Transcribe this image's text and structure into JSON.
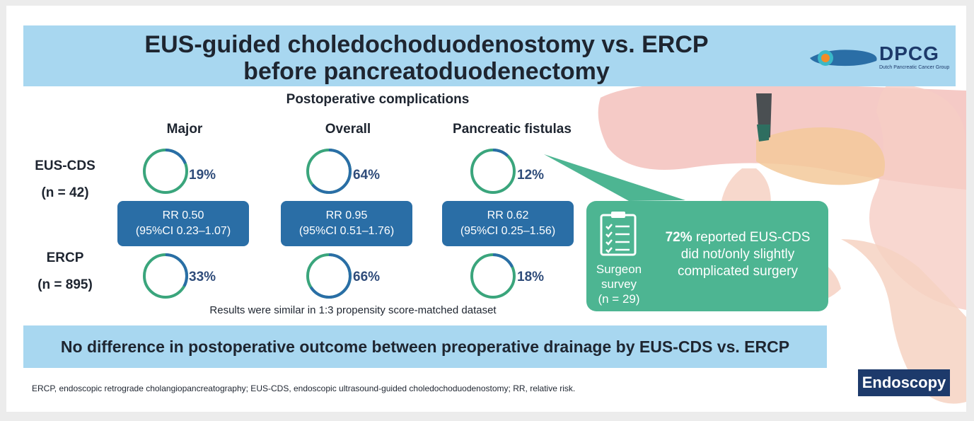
{
  "header": {
    "title_line1": "EUS-guided choledochoduodenostomy vs. ERCP",
    "title_line2": "before pancreatoduodenectomy",
    "logo_text": "DPCG",
    "logo_subtext": "Dutch Pancreatic Cancer Group"
  },
  "section_title": "Postoperative complications",
  "columns": [
    {
      "label": "Major",
      "eus_pct": 19,
      "ercp_pct": 33,
      "rr_line1": "RR 0.50",
      "rr_line2": "(95%CI 0.23–1.07)"
    },
    {
      "label": "Overall",
      "eus_pct": 64,
      "ercp_pct": 66,
      "rr_line1": "RR 0.95",
      "rr_line2": "(95%CI 0.51–1.76)"
    },
    {
      "label": "Pancreatic fistulas",
      "eus_pct": 12,
      "ercp_pct": 18,
      "rr_line1": "RR 0.62",
      "rr_line2": "(95%CI 0.25–1.56)"
    }
  ],
  "rows": [
    {
      "label": "EUS-CDS",
      "n": "(n = 42)"
    },
    {
      "label": "ERCP",
      "n": "(n = 895)"
    }
  ],
  "pct_text": {
    "eus": [
      "19%",
      "64%",
      "12%"
    ],
    "ercp": [
      "33%",
      "66%",
      "18%"
    ]
  },
  "note": "Results were similar in 1:3 propensity score-matched dataset",
  "survey": {
    "label_line1": "Surgeon",
    "label_line2": "survey",
    "label_line3": "(n = 29)",
    "highlight": "72%",
    "text_rest": " reported EUS-CDS did not/only slightly complicated surgery"
  },
  "conclusion": "No difference in postoperative outcome between preoperative drainage by EUS-CDS vs. ERCP",
  "footnote": "ERCP, endoscopic retrograde cholangiopancreatography; EUS-CDS, endoscopic ultrasound-guided choledochoduodenostomy; RR, relative risk.",
  "journal": "Endoscopy",
  "colors": {
    "ring_green": "#3aa57c",
    "ring_blue": "#2a6ea6",
    "header_bg": "#a8d7f0",
    "rr_box": "#2a6ea6",
    "survey_box": "#4db592"
  }
}
